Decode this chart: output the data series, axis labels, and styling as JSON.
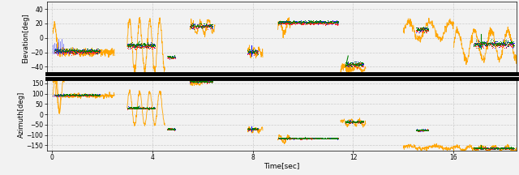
{
  "xlabel": "Time[sec]",
  "ylabel_top": "Elevation[deg]",
  "ylabel_bot": "Azimuth[deg]",
  "elev_ylim": [
    -50,
    50
  ],
  "azim_ylim": [
    -175,
    175
  ],
  "elev_yticks": [
    -40,
    -20,
    0,
    20,
    40
  ],
  "azim_yticks": [
    -150,
    -100,
    -50,
    0,
    50,
    100,
    150
  ],
  "xticks": [
    0,
    4,
    8,
    12,
    16
  ],
  "xlim": [
    -0.2,
    18.5
  ],
  "colors": {
    "orange": "#FFA500",
    "blue": "#1515FF",
    "red": "#FF2020",
    "green": "#008000"
  },
  "bg_color": "#f2f2f2",
  "grid_color": "#cccccc"
}
